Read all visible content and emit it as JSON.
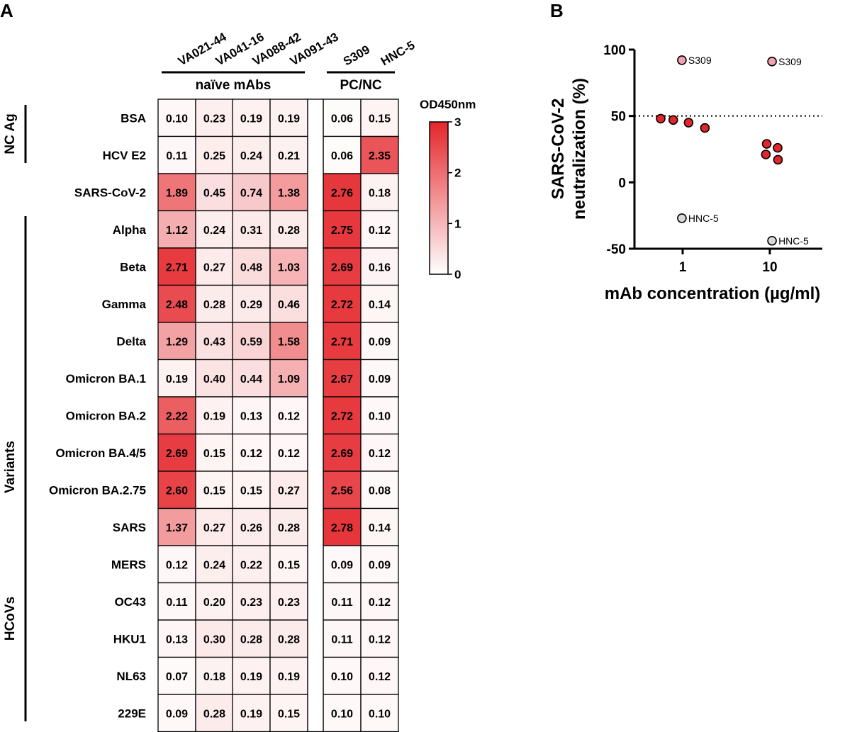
{
  "chart_data": [
    {
      "type": "heatmap",
      "panel_label": "A",
      "columns": [
        "VA021-44",
        "VA041-16",
        "VA088-42",
        "VA091-43",
        "S309",
        "HNC-5"
      ],
      "column_groups": [
        {
          "label": "naïve mAbs",
          "columns": [
            "VA021-44",
            "VA041-16",
            "VA088-42",
            "VA091-43"
          ]
        },
        {
          "label": "PC/NC",
          "columns": [
            "S309",
            "HNC-5"
          ]
        }
      ],
      "rows": [
        "BSA",
        "HCV E2",
        "SARS-CoV-2",
        "Alpha",
        "Beta",
        "Gamma",
        "Delta",
        "Omicron BA.1",
        "Omicron BA.2",
        "Omicron BA.4/5",
        "Omicron BA.2.75",
        "SARS",
        "MERS",
        "OC43",
        "HKU1",
        "NL63",
        "229E"
      ],
      "row_groups": [
        {
          "label": "NC Ag",
          "rows": [
            "BSA",
            "HCV E2"
          ]
        },
        {
          "label": "Variants",
          "rows": [
            "Alpha",
            "Beta",
            "Gamma",
            "Delta",
            "Omicron BA.1",
            "Omicron BA.2",
            "Omicron BA.4/5",
            "Omicron BA.2.75"
          ]
        },
        {
          "label": "HCoVs",
          "rows": [
            "SARS",
            "MERS",
            "OC43",
            "HKU1",
            "NL63",
            "229E"
          ]
        }
      ],
      "values": [
        [
          "0.10",
          "0.23",
          "0.19",
          "0.19",
          "0.06",
          "0.15"
        ],
        [
          "0.11",
          "0.25",
          "0.24",
          "0.21",
          "0.06",
          "2.35"
        ],
        [
          "1.89",
          "0.45",
          "0.74",
          "1.38",
          "2.76",
          "0.18"
        ],
        [
          "1.12",
          "0.24",
          "0.31",
          "0.28",
          "2.75",
          "0.12"
        ],
        [
          "2.71",
          "0.27",
          "0.48",
          "1.03",
          "2.69",
          "0.16"
        ],
        [
          "2.48",
          "0.28",
          "0.29",
          "0.46",
          "2.72",
          "0.14"
        ],
        [
          "1.29",
          "0.43",
          "0.59",
          "1.58",
          "2.71",
          "0.09"
        ],
        [
          "0.19",
          "0.40",
          "0.44",
          "1.09",
          "2.67",
          "0.09"
        ],
        [
          "2.22",
          "0.19",
          "0.13",
          "0.12",
          "2.72",
          "0.10"
        ],
        [
          "2.69",
          "0.15",
          "0.12",
          "0.12",
          "2.69",
          "0.12"
        ],
        [
          "2.60",
          "0.15",
          "0.15",
          "0.27",
          "2.56",
          "0.08"
        ],
        [
          "1.37",
          "0.27",
          "0.26",
          "0.28",
          "2.78",
          "0.14"
        ],
        [
          "0.12",
          "0.24",
          "0.22",
          "0.15",
          "0.09",
          "0.09"
        ],
        [
          "0.11",
          "0.20",
          "0.23",
          "0.23",
          "0.11",
          "0.12"
        ],
        [
          "0.13",
          "0.30",
          "0.28",
          "0.28",
          "0.11",
          "0.12"
        ],
        [
          "0.07",
          "0.18",
          "0.19",
          "0.19",
          "0.10",
          "0.12"
        ],
        [
          "0.09",
          "0.28",
          "0.19",
          "0.15",
          "0.10",
          "0.10"
        ]
      ],
      "colorbar": {
        "title": "OD450nm",
        "min": 0,
        "max": 3,
        "ticks": [
          "0",
          "1",
          "2",
          "3"
        ],
        "color_low": "#ffffff",
        "color_high": "#e4262b"
      }
    },
    {
      "type": "scatter",
      "panel_label": "B",
      "xlabel": "mAb concentration (µg/ml)",
      "ylabel": "SARS-CoV-2 neutralization (%)",
      "ylabel_lines": [
        "SARS-CoV-2",
        "neutralization (%)"
      ],
      "xscale": "log",
      "xlim": [
        0.28,
        40
      ],
      "ylim": [
        -50,
        100
      ],
      "x_ticks": [
        1,
        10
      ],
      "x_tick_labels": [
        "1",
        "10"
      ],
      "y_ticks": [
        -50,
        0,
        50,
        100
      ],
      "y_tick_labels": [
        "-50",
        "0",
        "50",
        "100"
      ],
      "reference_line": {
        "y": 50,
        "style": "dotted"
      },
      "series": [
        {
          "name": "naïve mAbs",
          "color": "#e4262b",
          "points": [
            {
              "x": 0.56,
              "y": 48
            },
            {
              "x": 0.78,
              "y": 47
            },
            {
              "x": 1.17,
              "y": 45
            },
            {
              "x": 1.8,
              "y": 41
            },
            {
              "x": 9.2,
              "y": 29
            },
            {
              "x": 12.3,
              "y": 26
            },
            {
              "x": 9.0,
              "y": 21
            },
            {
              "x": 12.4,
              "y": 17
            }
          ]
        },
        {
          "name": "S309",
          "color": "#f2a0b6",
          "points": [
            {
              "x": 0.98,
              "y": 92,
              "label": "S309"
            },
            {
              "x": 10.6,
              "y": 91,
              "label": "S309"
            }
          ]
        },
        {
          "name": "HNC-5",
          "color": "#d9d9d9",
          "points": [
            {
              "x": 0.98,
              "y": -27,
              "label": "HNC-5"
            },
            {
              "x": 10.6,
              "y": -44,
              "label": "HNC-5"
            }
          ]
        }
      ]
    }
  ]
}
